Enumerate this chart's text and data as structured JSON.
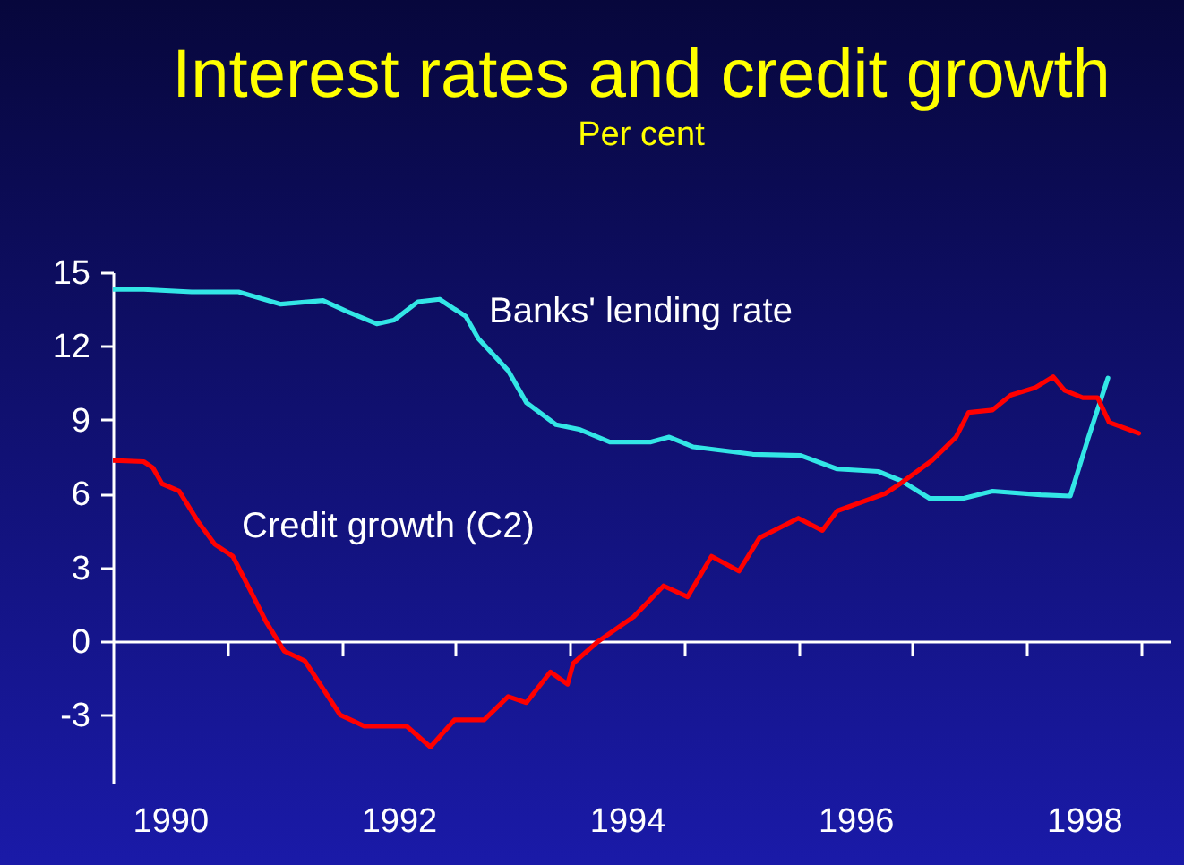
{
  "chart_data": {
    "type": "line",
    "title": "Interest rates and credit growth",
    "subtitle": "Per cent",
    "xlim": [
      1990,
      1999.25
    ],
    "ylim": [
      -5.75,
      15
    ],
    "xticks": [
      {
        "value": 1990.5,
        "label": "1990"
      },
      {
        "value": 1992.5,
        "label": "1992"
      },
      {
        "value": 1994.5,
        "label": "1994"
      },
      {
        "value": 1996.5,
        "label": "1996"
      },
      {
        "value": 1998.5,
        "label": "1998"
      },
      {
        "value": 1991,
        "label": null
      },
      {
        "value": 1992,
        "label": null
      },
      {
        "value": 1993,
        "label": null
      },
      {
        "value": 1994,
        "label": null
      },
      {
        "value": 1995,
        "label": null
      },
      {
        "value": 1996,
        "label": null
      },
      {
        "value": 1997,
        "label": null
      },
      {
        "value": 1998,
        "label": null
      },
      {
        "value": 1999,
        "label": null
      }
    ],
    "yticks": [
      -3,
      0,
      3,
      6,
      9,
      12,
      15
    ],
    "line_style": "solid",
    "series": [
      {
        "name": "Banks' lending rate",
        "color": "#33e6e6",
        "x": [
          1990.0,
          1990.27,
          1990.69,
          1991.1,
          1991.47,
          1991.84,
          1992.05,
          1992.31,
          1992.46,
          1992.67,
          1992.86,
          1993.09,
          1993.2,
          1993.46,
          1993.62,
          1993.88,
          1994.09,
          1994.35,
          1994.71,
          1994.87,
          1995.08,
          1995.6,
          1996.02,
          1996.34,
          1996.7,
          1996.91,
          1997.15,
          1997.44,
          1997.7,
          1998.12,
          1998.38,
          1998.54,
          1998.71
        ],
        "values": [
          14.3,
          14.3,
          14.2,
          14.2,
          13.7,
          13.85,
          13.4,
          12.9,
          13.05,
          13.8,
          13.9,
          13.2,
          12.3,
          11.0,
          9.7,
          8.8,
          8.6,
          8.1,
          8.1,
          8.3,
          7.9,
          7.6,
          7.55,
          7.0,
          6.9,
          6.5,
          5.8,
          5.8,
          6.1,
          5.95,
          5.9,
          8.3,
          10.7
        ]
      },
      {
        "name": "Credit growth (C2)",
        "color": "#ff0000",
        "x": [
          1990.0,
          1990.27,
          1990.35,
          1990.43,
          1990.58,
          1990.74,
          1990.89,
          1991.05,
          1991.21,
          1991.34,
          1991.5,
          1991.68,
          1991.99,
          1992.2,
          1992.57,
          1992.78,
          1992.99,
          1993.25,
          1993.46,
          1993.62,
          1993.83,
          1993.98,
          1994.03,
          1994.25,
          1994.56,
          1994.82,
          1995.03,
          1995.24,
          1995.48,
          1995.66,
          1996.0,
          1996.21,
          1996.34,
          1996.76,
          1996.89,
          1997.17,
          1997.38,
          1997.49,
          1997.7,
          1997.86,
          1998.07,
          1998.23,
          1998.33,
          1998.49,
          1998.62,
          1998.72,
          1998.98
        ],
        "values": [
          7.35,
          7.3,
          7.05,
          6.4,
          6.1,
          4.9,
          3.95,
          3.45,
          2.0,
          0.8,
          -0.4,
          -0.8,
          -3.0,
          -3.45,
          -3.45,
          -4.3,
          -3.2,
          -3.2,
          -2.25,
          -2.5,
          -1.25,
          -1.75,
          -0.9,
          0.0,
          1.0,
          2.25,
          1.8,
          3.45,
          2.85,
          4.2,
          5.0,
          4.5,
          5.3,
          6.0,
          6.4,
          7.35,
          8.3,
          9.3,
          9.4,
          10.0,
          10.3,
          10.75,
          10.2,
          9.9,
          9.9,
          8.9,
          8.45
        ]
      }
    ]
  }
}
